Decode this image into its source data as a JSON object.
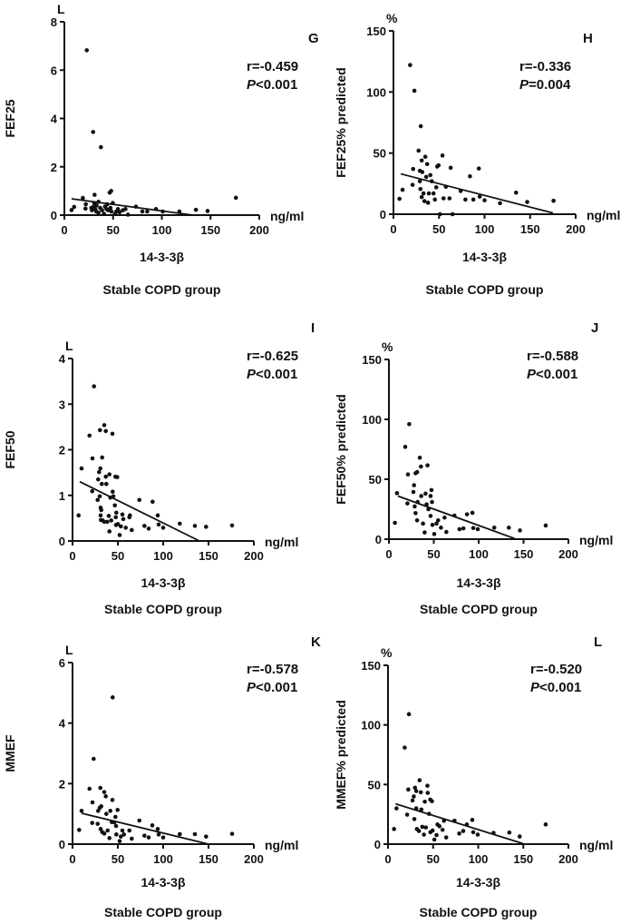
{
  "chart_data": [
    {
      "type": "scatter",
      "panel_letter": "G",
      "ylabel": "FEF25",
      "yunit": "L",
      "xlabel": "14-3-3β",
      "xunit": "ng/ml",
      "group_label": "Stable COPD group",
      "r_text": "r=-0.459",
      "p_symbol": "P",
      "p_value": "<0.001",
      "xlim": [
        0,
        200
      ],
      "ylim": [
        0,
        8
      ],
      "xticks": [
        "0",
        "50",
        "100",
        "150",
        "200"
      ],
      "yticks": [
        "0",
        "2",
        "4",
        "6",
        "8"
      ],
      "fit_line": [
        [
          7.4,
          0.675
        ],
        [
          132,
          0
        ]
      ],
      "points": [
        [
          7.4,
          0.21
        ],
        [
          10,
          0.34
        ],
        [
          19,
          0.71
        ],
        [
          21.7,
          0.27
        ],
        [
          23,
          6.82
        ],
        [
          22,
          0.45
        ],
        [
          27.7,
          0.3
        ],
        [
          28.3,
          0.2
        ],
        [
          29.5,
          3.44
        ],
        [
          30,
          0.35
        ],
        [
          30.7,
          0.5
        ],
        [
          31,
          0.84
        ],
        [
          31.7,
          0.25
        ],
        [
          32.7,
          0.15
        ],
        [
          33,
          0.4
        ],
        [
          35,
          0.55
        ],
        [
          35,
          0.1
        ],
        [
          36.7,
          0.3
        ],
        [
          37.5,
          2.81
        ],
        [
          38.7,
          0.2
        ],
        [
          40.7,
          0.05
        ],
        [
          41.7,
          0.35
        ],
        [
          43.3,
          0.25
        ],
        [
          44,
          0.45
        ],
        [
          45,
          0.2
        ],
        [
          46.5,
          0.93
        ],
        [
          48,
          1.0
        ],
        [
          47.3,
          0.3
        ],
        [
          48.3,
          0.15
        ],
        [
          49.7,
          0.5
        ],
        [
          52,
          0.05
        ],
        [
          53.3,
          0.15
        ],
        [
          55,
          0.25
        ],
        [
          56.7,
          0.12
        ],
        [
          60,
          0.2
        ],
        [
          62.7,
          0.25
        ],
        [
          65.3,
          0.02
        ],
        [
          73.5,
          0.35
        ],
        [
          80,
          0.15
        ],
        [
          85,
          0.15
        ],
        [
          94,
          0.25
        ],
        [
          101,
          0.15
        ],
        [
          118,
          0.15
        ],
        [
          135,
          0.22
        ],
        [
          147,
          0.17
        ],
        [
          176,
          0.72
        ]
      ]
    },
    {
      "type": "scatter",
      "panel_letter": "H",
      "ylabel": "FEF25% predicted",
      "yunit": "%",
      "xlabel": "14-3-3β",
      "xunit": "ng/ml",
      "group_label": "Stable COPD group",
      "r_text": "r=-0.336",
      "p_symbol": "P",
      "p_value": "=0.004",
      "xlim": [
        0,
        200
      ],
      "ylim": [
        0,
        150
      ],
      "xticks": [
        "0",
        "50",
        "100",
        "150",
        "200"
      ],
      "yticks": [
        "0",
        "50",
        "100",
        "150"
      ],
      "fit_line": [
        [
          8,
          33
        ],
        [
          175,
          1
        ]
      ],
      "points": [
        [
          6.6,
          12.6
        ],
        [
          10,
          20
        ],
        [
          18.3,
          122
        ],
        [
          23,
          101
        ],
        [
          21.6,
          37
        ],
        [
          21,
          24
        ],
        [
          27.6,
          52
        ],
        [
          29,
          35.5
        ],
        [
          30,
          72
        ],
        [
          31,
          44
        ],
        [
          31.6,
          34.5
        ],
        [
          29,
          27
        ],
        [
          29.6,
          20.6
        ],
        [
          31,
          14
        ],
        [
          33,
          17
        ],
        [
          34,
          10.7
        ],
        [
          35,
          47
        ],
        [
          37,
          41
        ],
        [
          36,
          30.5
        ],
        [
          38,
          9.4
        ],
        [
          38.9,
          17
        ],
        [
          40.5,
          32
        ],
        [
          42,
          27
        ],
        [
          44,
          17
        ],
        [
          45.5,
          12
        ],
        [
          48,
          39
        ],
        [
          49.5,
          40
        ],
        [
          47,
          22
        ],
        [
          51,
          0
        ],
        [
          53.8,
          48
        ],
        [
          55,
          13
        ],
        [
          57.5,
          22.5
        ],
        [
          61.5,
          13
        ],
        [
          62.8,
          38
        ],
        [
          64.8,
          0
        ],
        [
          73.8,
          19
        ],
        [
          79,
          12
        ],
        [
          84,
          31
        ],
        [
          87.7,
          12
        ],
        [
          93.7,
          37.4
        ],
        [
          94.7,
          14.4
        ],
        [
          100,
          11.4
        ],
        [
          117,
          9
        ],
        [
          134.6,
          17.6
        ],
        [
          146.8,
          10
        ],
        [
          175.7,
          11
        ]
      ]
    },
    {
      "type": "scatter",
      "panel_letter": "I",
      "ylabel": "FEF50",
      "yunit": "L",
      "xlabel": "14-3-3β",
      "xunit": "ng/ml",
      "group_label": "Stable COPD group",
      "r_text": "r=-0.625",
      "p_symbol": "P",
      "p_value": "<0.001",
      "xlim": [
        0,
        200
      ],
      "ylim": [
        0,
        4
      ],
      "xticks": [
        "0",
        "50",
        "100",
        "150",
        "200"
      ],
      "yticks": [
        "0",
        "1",
        "2",
        "3",
        "4"
      ],
      "fit_line": [
        [
          8,
          1.3
        ],
        [
          140,
          0
        ]
      ],
      "points": [
        [
          6.7,
          0.56
        ],
        [
          10,
          1.59
        ],
        [
          18.7,
          2.31
        ],
        [
          22,
          1.81
        ],
        [
          23.7,
          3.39
        ],
        [
          21.7,
          1.09
        ],
        [
          27.7,
          0.9
        ],
        [
          28.3,
          1.35
        ],
        [
          29.3,
          1.51
        ],
        [
          30.3,
          2.43
        ],
        [
          30.7,
          1.59
        ],
        [
          30,
          0.98
        ],
        [
          31,
          0.73
        ],
        [
          31.7,
          0.68
        ],
        [
          31,
          0.56
        ],
        [
          31.3,
          0.46
        ],
        [
          32.7,
          1.83
        ],
        [
          32.3,
          1.25
        ],
        [
          33.3,
          0.45
        ],
        [
          35,
          2.54
        ],
        [
          35,
          0.42
        ],
        [
          36.7,
          2.41
        ],
        [
          36.7,
          1.41
        ],
        [
          37.3,
          1.25
        ],
        [
          38.3,
          0.42
        ],
        [
          40,
          0.55
        ],
        [
          40.7,
          0.21
        ],
        [
          40.7,
          1.46
        ],
        [
          41.7,
          0.95
        ],
        [
          42.7,
          0.45
        ],
        [
          44,
          2.35
        ],
        [
          44.3,
          1.08
        ],
        [
          45,
          0.98
        ],
        [
          46.7,
          0.78
        ],
        [
          47.3,
          1.41
        ],
        [
          49.3,
          1.4
        ],
        [
          47.7,
          0.52
        ],
        [
          48,
          0.35
        ],
        [
          48.3,
          0.62
        ],
        [
          50,
          0.37
        ],
        [
          52,
          0.13
        ],
        [
          53.3,
          0.32
        ],
        [
          55,
          0.58
        ],
        [
          56,
          0.48
        ],
        [
          58.7,
          0.29
        ],
        [
          62.7,
          0.52
        ],
        [
          63.3,
          0.56
        ],
        [
          65.3,
          0.24
        ],
        [
          73.7,
          0.9
        ],
        [
          79.3,
          0.33
        ],
        [
          84,
          0.27
        ],
        [
          88.3,
          0.86
        ],
        [
          94,
          0.56
        ],
        [
          95,
          0.36
        ],
        [
          100,
          0.29
        ],
        [
          118.3,
          0.38
        ],
        [
          135,
          0.33
        ],
        [
          147.3,
          0.31
        ],
        [
          176,
          0.34
        ]
      ]
    },
    {
      "type": "scatter",
      "panel_letter": "J",
      "ylabel": "FEF50% predicted",
      "yunit": "%",
      "xlabel": "14-3-3β",
      "xunit": "ng/ml",
      "group_label": "Stable COPD group",
      "r_text": "r=-0.588",
      "p_symbol": "P",
      "p_value": "<0.001",
      "xlim": [
        0,
        200
      ],
      "ylim": [
        0,
        150
      ],
      "xticks": [
        "0",
        "50",
        "100",
        "150",
        "200"
      ],
      "yticks": [
        "0",
        "50",
        "100",
        "150"
      ],
      "fit_line": [
        [
          10,
          36
        ],
        [
          140,
          0.5
        ]
      ],
      "points": [
        [
          6.7,
          13.6
        ],
        [
          9,
          38.4
        ],
        [
          20.6,
          29.8
        ],
        [
          18.2,
          77
        ],
        [
          21.2,
          54
        ],
        [
          22.6,
          96
        ],
        [
          27.3,
          39.4
        ],
        [
          28,
          45
        ],
        [
          28.7,
          27.3
        ],
        [
          29.7,
          55
        ],
        [
          31.4,
          56
        ],
        [
          29.7,
          21.7
        ],
        [
          31.4,
          15.7
        ],
        [
          32,
          31
        ],
        [
          34.4,
          68
        ],
        [
          35.7,
          60.6
        ],
        [
          36,
          36
        ],
        [
          38,
          13
        ],
        [
          39.8,
          5.6
        ],
        [
          40.8,
          38
        ],
        [
          42,
          29
        ],
        [
          43,
          61.6
        ],
        [
          44,
          25
        ],
        [
          46.4,
          36
        ],
        [
          47.4,
          41
        ],
        [
          46.4,
          19.4
        ],
        [
          48,
          31
        ],
        [
          48.5,
          11.9
        ],
        [
          50.5,
          4.3
        ],
        [
          53,
          13
        ],
        [
          54.8,
          15.7
        ],
        [
          58,
          9.6
        ],
        [
          62,
          18
        ],
        [
          64,
          6
        ],
        [
          73,
          19.7
        ],
        [
          78.6,
          8.3
        ],
        [
          83,
          9
        ],
        [
          87,
          20.7
        ],
        [
          93,
          22
        ],
        [
          94,
          9.3
        ],
        [
          99,
          8.3
        ],
        [
          117.4,
          9.6
        ],
        [
          133.6,
          9.6
        ],
        [
          146,
          7.3
        ],
        [
          174.7,
          11.4
        ]
      ]
    },
    {
      "type": "scatter",
      "panel_letter": "K",
      "ylabel": "MMEF",
      "yunit": "L",
      "xlabel": "14-3-3β",
      "xunit": "ng/ml",
      "group_label": "Stable COPD group",
      "r_text": "r=-0.578",
      "p_symbol": "P",
      "p_value": "<0.001",
      "xlim": [
        0,
        200
      ],
      "ylim": [
        0,
        6
      ],
      "xticks": [
        "0",
        "50",
        "100",
        "150",
        "200"
      ],
      "yticks": [
        "0",
        "2",
        "4",
        "6"
      ],
      "fit_line": [
        [
          10,
          1.02
        ],
        [
          150,
          0
        ]
      ],
      "points": [
        [
          7.3,
          0.47
        ],
        [
          10,
          1.1
        ],
        [
          18.7,
          1.83
        ],
        [
          22,
          1.38
        ],
        [
          23.3,
          2.82
        ],
        [
          21.7,
          0.7
        ],
        [
          27.7,
          0.67
        ],
        [
          28.3,
          1.1
        ],
        [
          30,
          1.2
        ],
        [
          30.7,
          1.86
        ],
        [
          31.7,
          1.25
        ],
        [
          31,
          0.5
        ],
        [
          32.7,
          0.4
        ],
        [
          35,
          1.72
        ],
        [
          36.7,
          1.58
        ],
        [
          35,
          0.35
        ],
        [
          37.3,
          1.0
        ],
        [
          38.7,
          0.45
        ],
        [
          40.7,
          0.2
        ],
        [
          41.7,
          1.1
        ],
        [
          43.3,
          0.73
        ],
        [
          44,
          1.46
        ],
        [
          44.3,
          4.85
        ],
        [
          46,
          0.72
        ],
        [
          47.3,
          0.9
        ],
        [
          49.7,
          1.13
        ],
        [
          48,
          0.6
        ],
        [
          48.3,
          0.32
        ],
        [
          52,
          0.1
        ],
        [
          53.3,
          0.25
        ],
        [
          55,
          0.45
        ],
        [
          56.7,
          0.32
        ],
        [
          62.7,
          0.45
        ],
        [
          65.3,
          0.18
        ],
        [
          73.7,
          0.78
        ],
        [
          79.3,
          0.28
        ],
        [
          84,
          0.22
        ],
        [
          88,
          0.62
        ],
        [
          94,
          0.5
        ],
        [
          95,
          0.32
        ],
        [
          100,
          0.22
        ],
        [
          118.3,
          0.33
        ],
        [
          135,
          0.33
        ],
        [
          147.3,
          0.25
        ],
        [
          176,
          0.34
        ]
      ]
    },
    {
      "type": "scatter",
      "panel_letter": "L",
      "ylabel": "MMEF% predicted",
      "yunit": "%",
      "xlabel": "14-3-3β",
      "xunit": "ng/ml",
      "group_label": "Stable COPD group",
      "r_text": "r=-0.520",
      "p_symbol": "P",
      "p_value": "<0.001",
      "xlim": [
        0,
        200
      ],
      "ylim": [
        0,
        150
      ],
      "xticks": [
        "0",
        "50",
        "100",
        "150",
        "200"
      ],
      "yticks": [
        "0",
        "50",
        "100",
        "150"
      ],
      "fit_line": [
        [
          8.4,
          33.8
        ],
        [
          149.6,
          0.5
        ]
      ],
      "points": [
        [
          6.7,
          12.7
        ],
        [
          9.4,
          30
        ],
        [
          18.5,
          81
        ],
        [
          21.2,
          24.7
        ],
        [
          22.5,
          45.8
        ],
        [
          23.2,
          109
        ],
        [
          27.2,
          36.6
        ],
        [
          28.6,
          40
        ],
        [
          29.2,
          21
        ],
        [
          29.9,
          47.3
        ],
        [
          31.3,
          44.5
        ],
        [
          31.3,
          30
        ],
        [
          32,
          12.7
        ],
        [
          34.3,
          11
        ],
        [
          35,
          53.6
        ],
        [
          36.4,
          43.5
        ],
        [
          37,
          29
        ],
        [
          38,
          14.5
        ],
        [
          39.8,
          8
        ],
        [
          40.8,
          35.6
        ],
        [
          42,
          14
        ],
        [
          43.7,
          49
        ],
        [
          44,
          43
        ],
        [
          45.5,
          25.4
        ],
        [
          46.8,
          37.4
        ],
        [
          48.7,
          36
        ],
        [
          47,
          10
        ],
        [
          49.4,
          11.4
        ],
        [
          51.4,
          3.8
        ],
        [
          53.8,
          7.6
        ],
        [
          54.8,
          16.5
        ],
        [
          57,
          15
        ],
        [
          60.5,
          12
        ],
        [
          62,
          19.6
        ],
        [
          64.5,
          5.6
        ],
        [
          73.7,
          19.6
        ],
        [
          79,
          8.9
        ],
        [
          83.4,
          11
        ],
        [
          87.4,
          16.5
        ],
        [
          93.4,
          20.3
        ],
        [
          94.5,
          10
        ],
        [
          99.5,
          8
        ],
        [
          117,
          9.4
        ],
        [
          134.5,
          9.7
        ],
        [
          146,
          6.4
        ],
        [
          174.8,
          16.5
        ]
      ]
    }
  ]
}
